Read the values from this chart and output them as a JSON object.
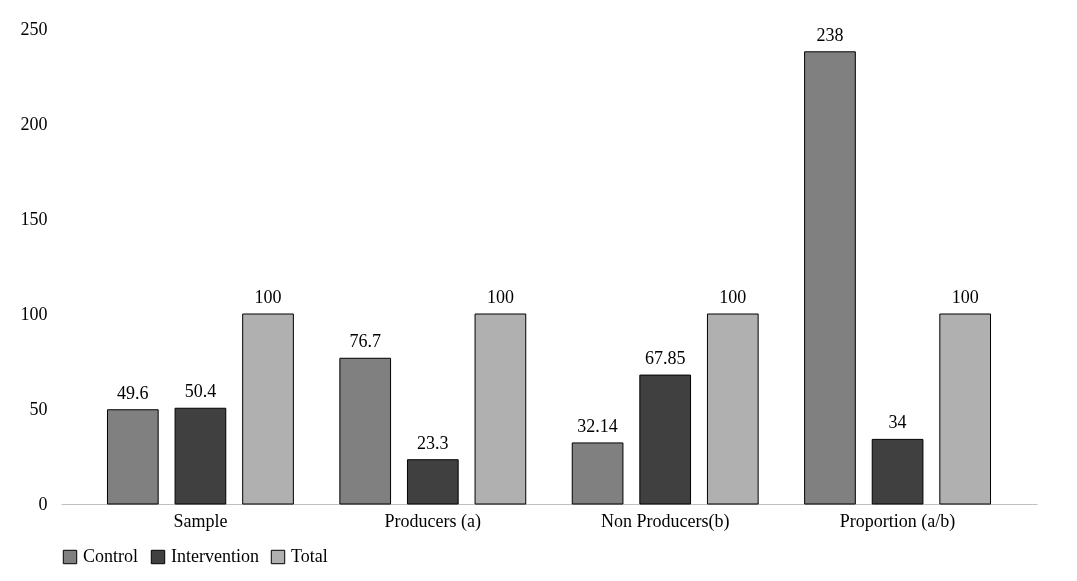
{
  "chart_data": {
    "type": "bar",
    "categories": [
      "Sample",
      "Producers (a)",
      "Non Producers(b)",
      "Proportion (a/b)"
    ],
    "series": [
      {
        "name": "Control",
        "color": "#808080",
        "values": [
          49.6,
          76.7,
          32.14,
          238
        ]
      },
      {
        "name": "Intervention",
        "color": "#404040",
        "values": [
          50.4,
          23.3,
          67.85,
          34
        ]
      },
      {
        "name": "Total",
        "color": "#b0b0b0",
        "values": [
          100,
          100,
          100,
          100
        ]
      }
    ],
    "ylim": [
      0,
      250
    ],
    "yticks": [
      0,
      50,
      100,
      150,
      200,
      250
    ],
    "grid": false,
    "legend": "bottom",
    "data_labels": true
  }
}
